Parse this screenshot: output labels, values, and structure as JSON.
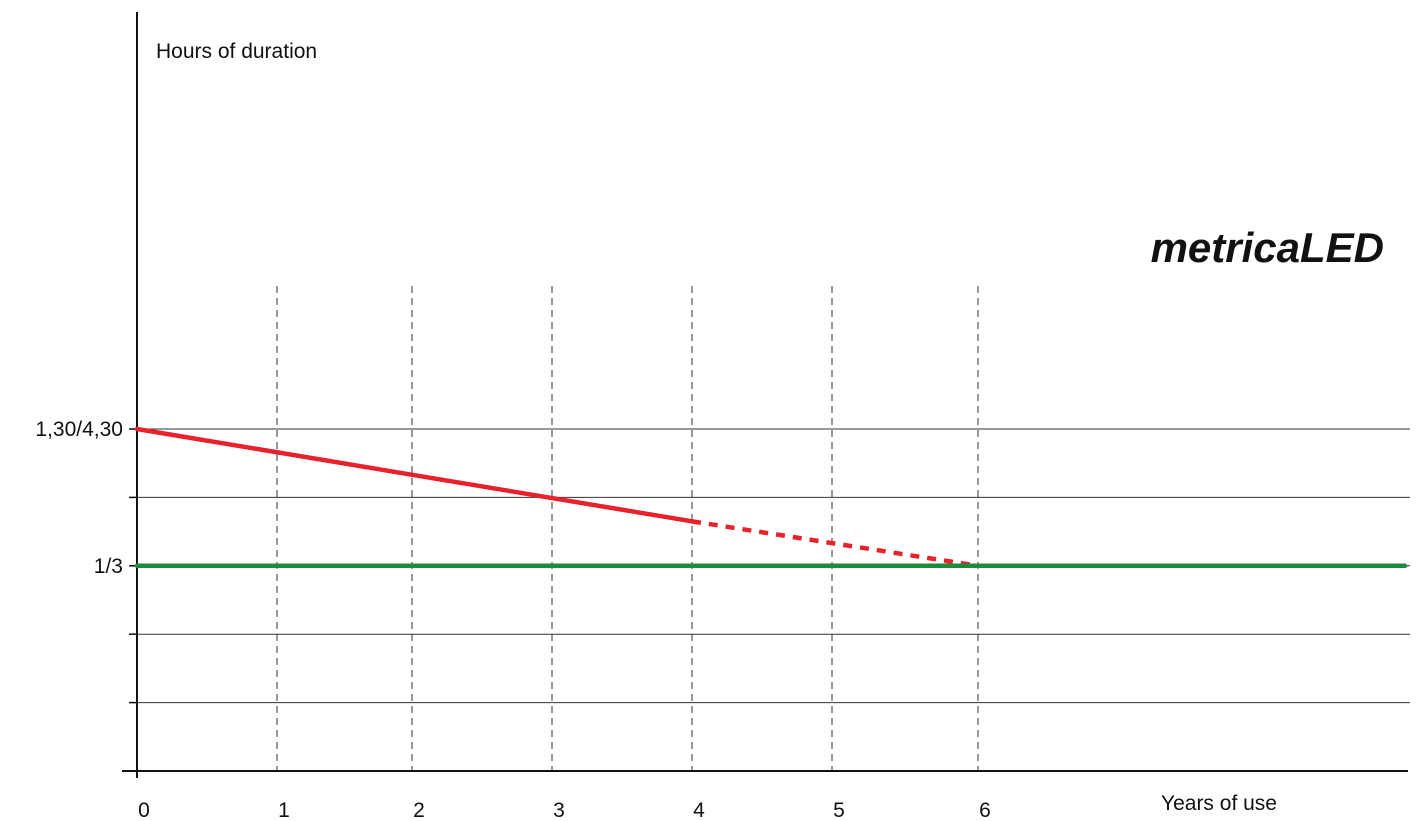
{
  "chart_data": {
    "type": "line",
    "title": "",
    "brand": "metricaLED",
    "xlabel": "Years of use",
    "ylabel": "Hours of duration",
    "x_ticks": [
      "0",
      "1",
      "2",
      "3",
      "4",
      "5",
      "6"
    ],
    "y_tick_labels": [
      {
        "label": "1,30/4,30",
        "level": 5
      },
      {
        "label": "1/3",
        "level": 3
      }
    ],
    "y_gridline_levels": [
      1,
      2,
      3,
      4,
      5
    ],
    "grid": {
      "horizontal": true,
      "vertical_dashed": true
    },
    "series": [
      {
        "color": "#e8222a",
        "points": [
          {
            "x": 0,
            "y": 5
          },
          {
            "x": 4,
            "y": 3.65
          }
        ],
        "projection": [
          {
            "x": 4,
            "y": 3.65
          },
          {
            "x": 6,
            "y": 3
          }
        ]
      },
      {
        "color": "#1e8a3c",
        "points": [
          {
            "x": 0,
            "y": 3
          },
          {
            "x": 9,
            "y": 3
          }
        ]
      }
    ],
    "colors": {
      "axis": "#111111",
      "grid": "#333333"
    }
  }
}
